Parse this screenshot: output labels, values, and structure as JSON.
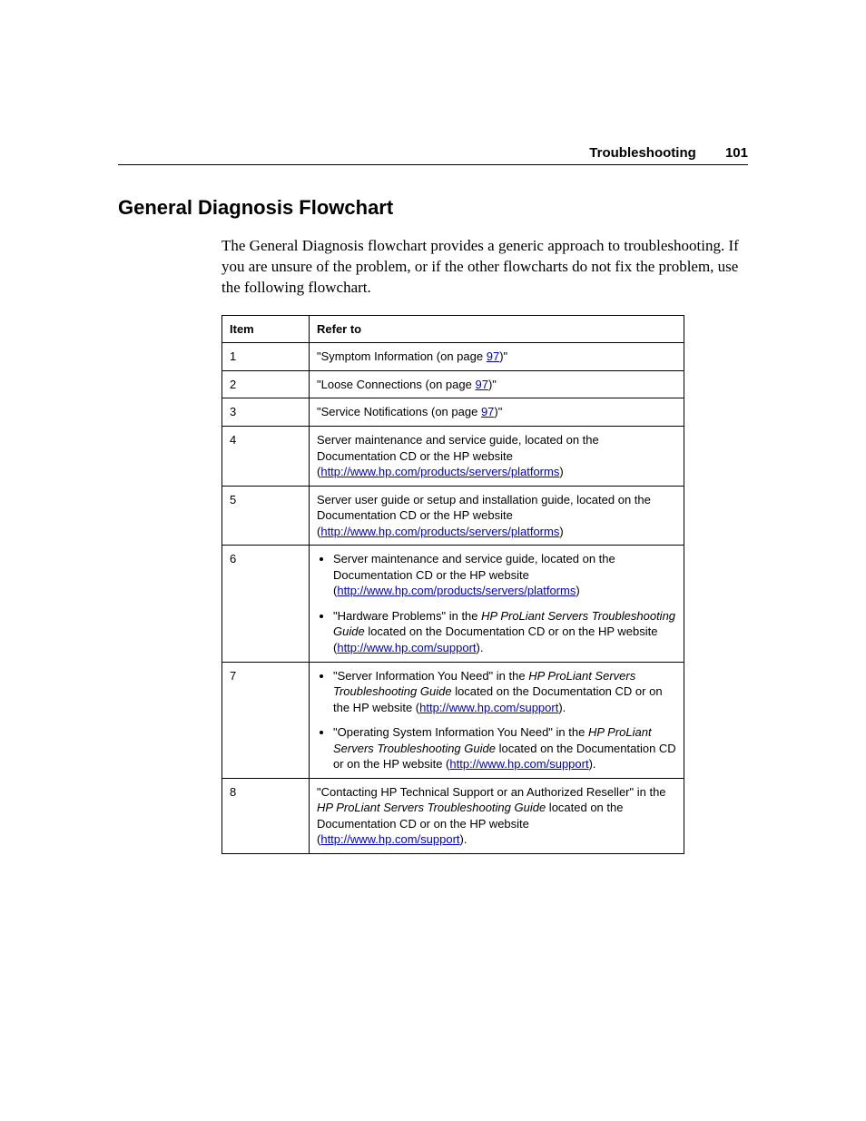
{
  "header": {
    "section_name": "Troubleshooting",
    "page_number": "101"
  },
  "title": "General Diagnosis Flowchart",
  "intro": "The General Diagnosis flowchart provides a generic approach to troubleshooting. If you are unsure of the problem, or if the other flowcharts do not fix the problem, use the following flowchart.",
  "table": {
    "columns": [
      "Item",
      "Refer to"
    ],
    "rows": [
      {
        "item": "1",
        "parts": [
          {
            "t": "text",
            "v": "\"Symptom Information (on page "
          },
          {
            "t": "link",
            "v": "97",
            "href": "#"
          },
          {
            "t": "text",
            "v": ")\""
          }
        ]
      },
      {
        "item": "2",
        "parts": [
          {
            "t": "text",
            "v": "\"Loose Connections (on page "
          },
          {
            "t": "link",
            "v": "97",
            "href": "#"
          },
          {
            "t": "text",
            "v": ")\""
          }
        ]
      },
      {
        "item": "3",
        "parts": [
          {
            "t": "text",
            "v": "\"Service Notifications (on page "
          },
          {
            "t": "link",
            "v": "97",
            "href": "#"
          },
          {
            "t": "text",
            "v": ")\""
          }
        ]
      },
      {
        "item": "4",
        "parts": [
          {
            "t": "text",
            "v": "Server maintenance and service guide, located on the Documentation CD or the HP website ("
          },
          {
            "t": "link",
            "v": "http://www.hp.com/products/servers/platforms",
            "href": "#"
          },
          {
            "t": "text",
            "v": ")"
          }
        ]
      },
      {
        "item": "5",
        "parts": [
          {
            "t": "text",
            "v": "Server user guide or setup and installation guide, located on the Documentation CD or the HP website ("
          },
          {
            "t": "link",
            "v": "http://www.hp.com/products/servers/platforms",
            "href": "#"
          },
          {
            "t": "text",
            "v": ")"
          }
        ]
      },
      {
        "item": "6",
        "bullets": [
          [
            {
              "t": "text",
              "v": "Server maintenance and service guide, located on the Documentation CD or the HP website ("
            },
            {
              "t": "link",
              "v": "http://www.hp.com/products/servers/platforms",
              "href": "#"
            },
            {
              "t": "text",
              "v": ")"
            }
          ],
          [
            {
              "t": "text",
              "v": "\"Hardware Problems\" in the "
            },
            {
              "t": "ital",
              "v": "HP ProLiant Servers Troubleshooting Guide"
            },
            {
              "t": "text",
              "v": " located on the Documentation CD or on the HP website ("
            },
            {
              "t": "link",
              "v": "http://www.hp.com/support",
              "href": "#"
            },
            {
              "t": "text",
              "v": ")."
            }
          ]
        ]
      },
      {
        "item": "7",
        "bullets": [
          [
            {
              "t": "text",
              "v": "\"Server Information You Need\" in the "
            },
            {
              "t": "ital",
              "v": "HP ProLiant Servers Troubleshooting Guide"
            },
            {
              "t": "text",
              "v": " located on the Documentation CD or on the HP website ("
            },
            {
              "t": "link",
              "v": "http://www.hp.com/support",
              "href": "#"
            },
            {
              "t": "text",
              "v": ")."
            }
          ],
          [
            {
              "t": "text",
              "v": "\"Operating System Information You Need\" in the "
            },
            {
              "t": "ital",
              "v": "HP ProLiant Servers Troubleshooting Guide"
            },
            {
              "t": "text",
              "v": " located on the Documentation CD or on the HP website ("
            },
            {
              "t": "link",
              "v": "http://www.hp.com/support",
              "href": "#"
            },
            {
              "t": "text",
              "v": ")."
            }
          ]
        ]
      },
      {
        "item": "8",
        "parts": [
          {
            "t": "text",
            "v": "\"Contacting HP Technical Support or an Authorized Reseller\" in the "
          },
          {
            "t": "ital",
            "v": "HP ProLiant Servers Troubleshooting Guide"
          },
          {
            "t": "text",
            "v": " located on the Documentation CD or on the HP website ("
          },
          {
            "t": "link",
            "v": "http://www.hp.com/support",
            "href": "#"
          },
          {
            "t": "text",
            "v": ")."
          }
        ]
      }
    ]
  }
}
